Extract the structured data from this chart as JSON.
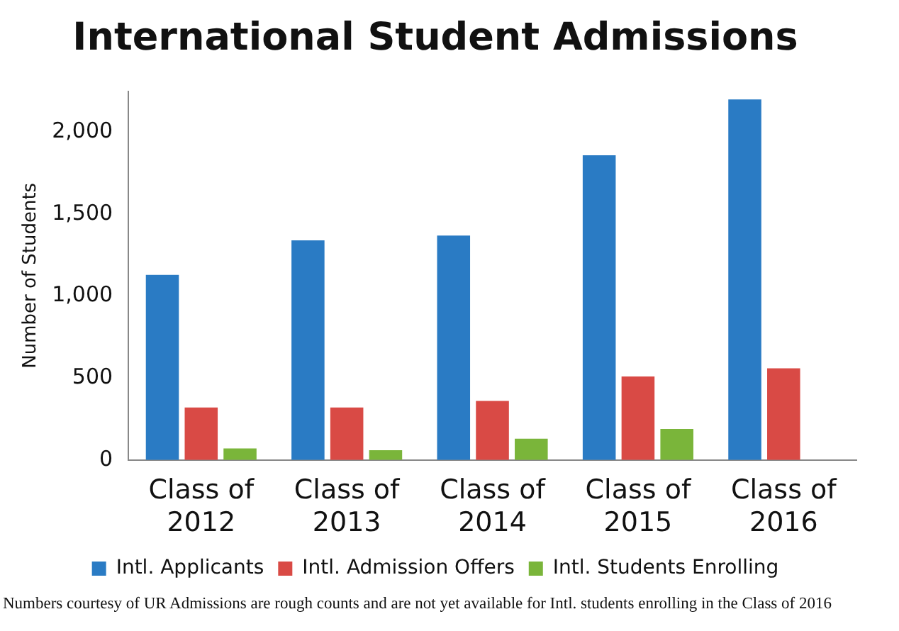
{
  "chart_data": {
    "type": "bar",
    "title": "International Student Admissions",
    "ylabel": "Number of Students",
    "categories": [
      "Class of 2012",
      "Class of 2013",
      "Class of 2014",
      "Class of 2015",
      "Class of 2016"
    ],
    "series": [
      {
        "name": "Intl. Applicants",
        "color": "#2a7bc4",
        "values": [
          1130,
          1340,
          1370,
          1860,
          2200
        ]
      },
      {
        "name": "Intl. Admission Offers",
        "color": "#d94a45",
        "values": [
          320,
          320,
          360,
          510,
          560
        ]
      },
      {
        "name": "Intl. Students Enrolling",
        "color": "#7ab53a",
        "values": [
          70,
          60,
          130,
          190,
          null
        ]
      }
    ],
    "ylim": [
      0,
      2250
    ],
    "yticks": [
      {
        "value": 0,
        "label": "0"
      },
      {
        "value": 500,
        "label": "500"
      },
      {
        "value": 1000,
        "label": "1,000"
      },
      {
        "value": 1500,
        "label": "1,500"
      },
      {
        "value": 2000,
        "label": "2,000"
      }
    ],
    "grid": false,
    "legend": "bottom",
    "annotations": [
      "Numbers courtesy of UR Admissions are rough counts and are not yet available for Intl. students enrolling in the Class of 2016"
    ]
  }
}
